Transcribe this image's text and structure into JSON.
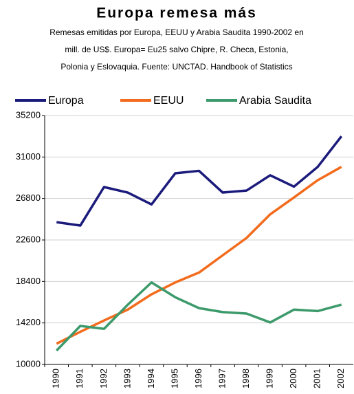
{
  "chart_data": {
    "type": "line",
    "title": "Europa remesa más",
    "subtitle": [
      "Remesas emitidas por Europa, EEUU y Arabia Saudita 1990-2002 en",
      "mill. de US$. Europa= Eu25 salvo Chipre, R. Checa, Estonia,",
      "Polonia y Eslovaquia. Fuente: UNCTAD. Handbook of Statistics"
    ],
    "categories": [
      "1990",
      "1991",
      "1992",
      "1993",
      "1994",
      "1995",
      "1996",
      "1997",
      "1998",
      "1999",
      "2000",
      "2001",
      "2002"
    ],
    "series": [
      {
        "name": "Europa",
        "color": "#1b1b7c",
        "values": [
          24400,
          24060,
          27960,
          27400,
          26200,
          29350,
          29600,
          27400,
          27600,
          29150,
          28000,
          30000,
          33100
        ]
      },
      {
        "name": "EEUU",
        "color": "#f36b1c",
        "values": [
          12100,
          13300,
          14450,
          15550,
          17100,
          18300,
          19300,
          21050,
          22800,
          25200,
          26900,
          28650,
          30000
        ]
      },
      {
        "name": "Arabia Saudita",
        "color": "#3c9a6b",
        "values": [
          11400,
          13900,
          13600,
          16050,
          18300,
          16800,
          15700,
          15300,
          15150,
          14250,
          15550,
          15400,
          16050
        ]
      }
    ],
    "ylim": [
      10000,
      35200
    ],
    "yticks": [
      10000,
      14200,
      18400,
      22600,
      26800,
      31000,
      35200
    ],
    "grid": true,
    "legend": "top"
  }
}
